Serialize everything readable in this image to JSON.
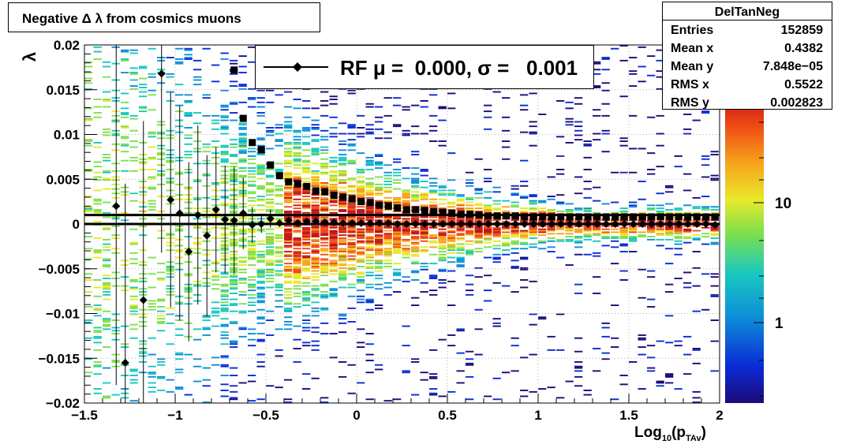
{
  "title": "Negative Δ λ from cosmics muons",
  "stats": {
    "name": "DelTanNeg",
    "rows": [
      {
        "label": "Entries",
        "value": "152859"
      },
      {
        "label": "Mean x",
        "value": "0.4382"
      },
      {
        "label": "Mean y",
        "value": "7.848e−05"
      },
      {
        "label": "RMS x",
        "value": "0.5522"
      },
      {
        "label": "RMS y",
        "value": "0.002823"
      }
    ]
  },
  "legend": {
    "text": "RF μ =  0.000, σ =   0.001"
  },
  "colorbar": {
    "labels": [
      "10",
      "1"
    ]
  },
  "chart_data": {
    "type": "heatmap",
    "xlabel_main": "Log",
    "xlabel_sub1": "10",
    "xlabel_mid": "(p",
    "xlabel_sub2": "TAv",
    "xlabel_end": ")",
    "ylabel": "λ",
    "xlim": [
      -1.5,
      2.0
    ],
    "ylim": [
      -0.02,
      0.02
    ],
    "xticks": [
      "−1.5",
      "−1",
      "−0.5",
      "0",
      "0.5",
      "1",
      "1.5",
      "2"
    ],
    "yticks": [
      "0.02",
      "0.015",
      "0.01",
      "0.005",
      "0",
      "−0.005",
      "−0.01",
      "−0.015",
      "−0.02"
    ],
    "grid": true,
    "hlines": [
      0.001,
      0.0
    ],
    "rms_points": {
      "x": [
        -0.675,
        -0.625,
        -0.575,
        -0.525,
        -0.475,
        -0.425,
        -0.375,
        -0.325,
        -0.275,
        -0.225,
        -0.175,
        -0.125,
        -0.075,
        -0.025,
        0.025,
        0.075,
        0.125,
        0.175,
        0.225,
        0.275,
        0.325,
        0.375,
        0.425,
        0.475,
        0.525,
        0.575,
        0.625,
        0.675,
        0.725,
        0.775,
        0.825,
        0.875,
        0.925,
        0.975,
        1.025,
        1.075,
        1.125,
        1.175,
        1.225,
        1.275,
        1.325,
        1.375,
        1.425,
        1.475,
        1.525,
        1.575,
        1.625,
        1.675,
        1.725,
        1.775,
        1.825,
        1.875,
        1.925,
        1.975
      ],
      "y": [
        0.0172,
        0.0118,
        0.0091,
        0.0083,
        0.0066,
        0.0054,
        0.0047,
        0.0045,
        0.0042,
        0.0037,
        0.0036,
        0.0032,
        0.003,
        0.0028,
        0.0025,
        0.0024,
        0.0021,
        0.002,
        0.0018,
        0.0016,
        0.0016,
        0.0015,
        0.0014,
        0.0013,
        0.0012,
        0.0011,
        0.0011,
        0.001,
        0.0009,
        0.0009,
        0.0009,
        0.0009,
        0.0008,
        0.0008,
        0.0008,
        0.0008,
        0.0008,
        0.0008,
        0.0008,
        0.0008,
        0.0008,
        0.0008,
        0.0008,
        0.0008,
        0.0008,
        0.0008,
        0.0008,
        0.0008,
        0.0008,
        0.0008,
        0.0008,
        0.0008,
        0.0008,
        0.0008
      ]
    },
    "mean_points": {
      "x": [
        -1.325,
        -1.275,
        -1.175,
        -1.075,
        -1.025,
        -0.975,
        -0.925,
        -0.875,
        -0.825,
        -0.775,
        -0.725,
        -0.675,
        -0.625,
        -0.575,
        -0.525,
        -0.475,
        -0.425,
        -0.375,
        -0.325,
        -0.275,
        -0.225,
        -0.175,
        -0.125,
        -0.075,
        -0.025,
        0.025,
        0.075,
        0.125,
        0.175,
        0.225,
        0.275,
        0.325,
        0.375,
        0.425,
        0.475,
        0.525,
        0.575,
        0.625,
        0.675,
        0.725,
        0.775,
        0.825,
        0.875,
        0.925,
        0.975,
        1.025,
        1.075,
        1.125,
        1.175,
        1.225,
        1.275,
        1.325,
        1.375,
        1.425,
        1.475,
        1.525,
        1.575,
        1.625,
        1.675,
        1.725,
        1.775,
        1.825,
        1.875,
        1.925,
        1.975
      ],
      "y": [
        0.002,
        -0.0155,
        -0.0085,
        0.0168,
        0.0027,
        0.0012,
        -0.0031,
        0.001,
        -0.0013,
        0.0016,
        0.0005,
        0.0004,
        0.0012,
        -0.0001,
        0.0,
        0.0006,
        0.0001,
        0.0004,
        0.0001,
        0.0003,
        0.0003,
        0.0002,
        0.0002,
        0.0001,
        0.0001,
        0.0001,
        0.0001,
        0.0001,
        0.0001,
        0.0,
        0.0,
        0.0,
        0.0,
        0.0,
        0.0,
        0.0,
        0.0,
        0.0,
        0.0,
        0.0,
        0.0,
        0.0,
        0.0,
        0.0,
        0.0,
        0.0,
        0.0,
        0.0,
        0.0,
        0.0,
        0.0,
        0.0,
        0.0,
        0.0,
        0.0,
        0.0,
        0.0,
        0.0,
        0.0,
        0.0,
        0.0,
        0.0,
        0.0,
        0.0,
        -0.0001
      ],
      "err": [
        0.02,
        0.02,
        0.02,
        0.02,
        0.012,
        0.012,
        0.01,
        0.01,
        0.009,
        0.007,
        0.006,
        0.006,
        0.004,
        0.002,
        0.001,
        0.001,
        0.0,
        0.0,
        0.0,
        0.0,
        0.0,
        0.0,
        0.0,
        0.0,
        0.0,
        0.0,
        0.0,
        0.0,
        0.0,
        0.0,
        0.0,
        0.0,
        0.0,
        0.0,
        0.0,
        0.0,
        0.0,
        0.0,
        0.0,
        0.0,
        0.0,
        0.0,
        0.0,
        0.0,
        0.0,
        0.0,
        0.0,
        0.0,
        0.0,
        0.0,
        0.0,
        0.0,
        0.0,
        0.0,
        0.0,
        0.0,
        0.0,
        0.0,
        0.0,
        0.0,
        0.0,
        0.0,
        0.0,
        0.0,
        0.0
      ]
    },
    "colors": {
      "rms_marker": "#000000",
      "mean_marker": "#000000",
      "grid": "#b0b0b0"
    }
  }
}
